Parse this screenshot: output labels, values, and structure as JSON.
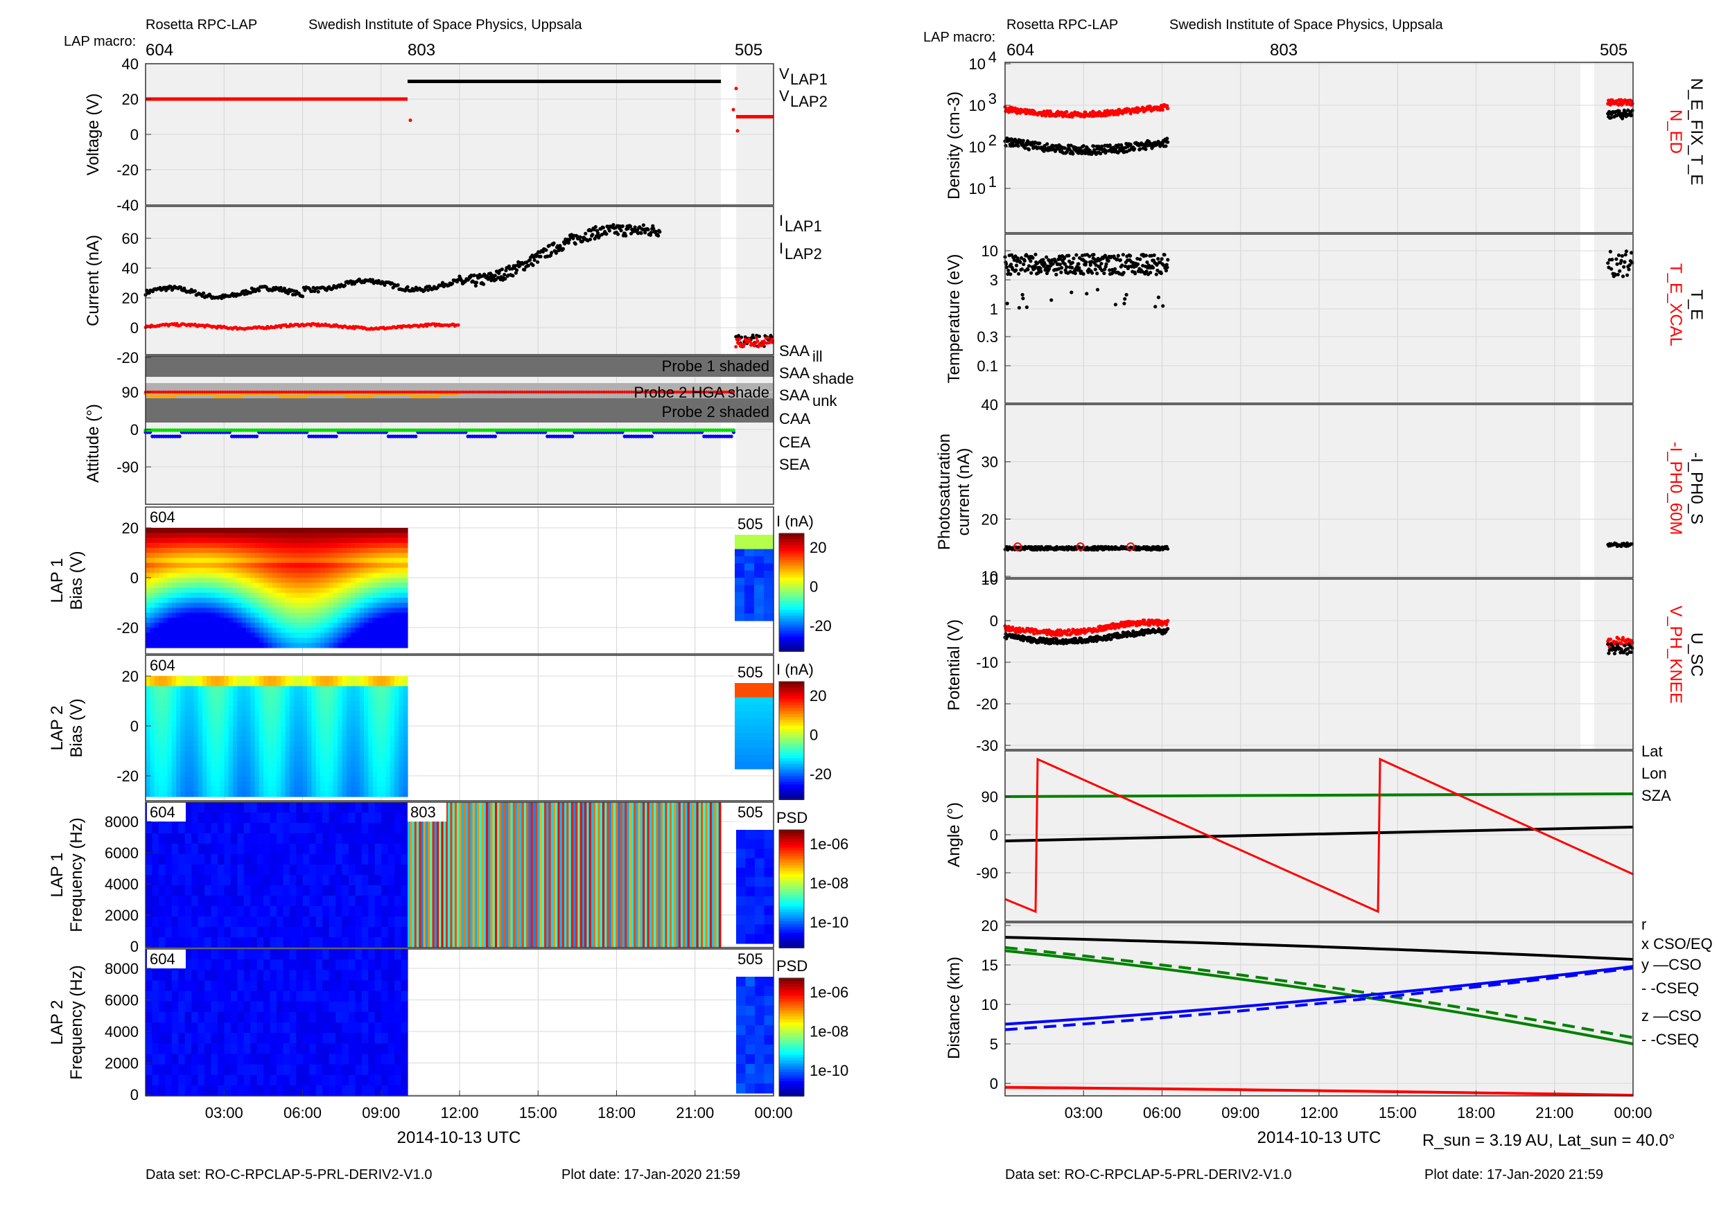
{
  "left": {
    "header": {
      "instrument": "Rosetta RPC-LAP",
      "institute": "Swedish Institute of Space Physics, Uppsala",
      "macro_label": "LAP macro:",
      "macros": [
        "604",
        "803",
        "505"
      ]
    },
    "footer": {
      "dataset": "Data set: RO-C-RPCLAP-5-PRL-DERIV2-V1.0",
      "plot_date": "Plot date: 17-Jan-2020 21:59"
    },
    "xaxis": {
      "title": "2014-10-13 UTC",
      "ticks": [
        "03:00",
        "06:00",
        "09:00",
        "12:00",
        "15:00",
        "18:00",
        "21:00",
        "00:00"
      ]
    }
  },
  "right": {
    "header": {
      "instrument": "Rosetta RPC-LAP",
      "institute": "Swedish Institute of Space Physics, Uppsala",
      "macro_label": "LAP macro:",
      "macros": [
        "604",
        "803",
        "505"
      ]
    },
    "footer": {
      "dataset": "Data set: RO-C-RPCLAP-5-PRL-DERIV2-V1.0",
      "plot_date": "Plot date: 17-Jan-2020 21:59"
    },
    "xaxis": {
      "title": "2014-10-13 UTC",
      "ticks": [
        "03:00",
        "06:00",
        "09:00",
        "12:00",
        "15:00",
        "18:00",
        "21:00",
        "00:00"
      ]
    },
    "sun_info": "R_sun = 3.19 AU, Lat_sun = 40.0°"
  },
  "chart_data": [
    {
      "type": "scatter",
      "ylabel": "Voltage (V)",
      "yticks": [
        "40",
        "20",
        "0",
        "-20",
        "-40"
      ],
      "series": [
        {
          "name": "V_LAP1",
          "color": "#000000",
          "values_by_macro": {
            "604": 20,
            "803": 30,
            "505": 10
          }
        },
        {
          "name": "V_LAP2",
          "color": "#ff0000",
          "values_by_macro": {
            "604": 20,
            "505": 10
          }
        }
      ]
    },
    {
      "type": "scatter",
      "ylabel": "Current (nA)",
      "yticks": [
        "60",
        "40",
        "20",
        "0",
        "-20"
      ],
      "series": [
        {
          "name": "I_LAP1",
          "color": "#000000"
        },
        {
          "name": "I_LAP2",
          "color": "#ff0000"
        }
      ]
    },
    {
      "type": "scatter",
      "ylabel": "Attitude (°)",
      "yticks": [
        "90",
        "0",
        "-90"
      ],
      "bands": [
        "Probe 1 shaded",
        "Probe 2 HGA shade",
        "Probe 2 shaded"
      ],
      "legend": [
        {
          "name": "SAA_ill",
          "color": "#ff0000"
        },
        {
          "name": "SAA_shade",
          "color": "#ffa500"
        },
        {
          "name": "SAA_unk",
          "color": "#ff00ff"
        },
        {
          "name": "CAA",
          "color": "#0000ff"
        },
        {
          "name": "CEA",
          "color": "#00dd00"
        },
        {
          "name": "SEA",
          "color": "#000000"
        }
      ]
    },
    {
      "type": "heatmap",
      "ylabel": "LAP 1 Bias (V)",
      "yticks": [
        "20",
        "0",
        "-20"
      ],
      "colorbar_label": "I (nA)",
      "colorbar_ticks": [
        "20",
        "0",
        "-20"
      ],
      "macros": [
        "604",
        "505"
      ]
    },
    {
      "type": "heatmap",
      "ylabel": "LAP 2 Bias (V)",
      "yticks": [
        "20",
        "0",
        "-20"
      ],
      "colorbar_label": "I (nA)",
      "colorbar_ticks": [
        "20",
        "0",
        "-20"
      ],
      "macros": [
        "604",
        "505"
      ]
    },
    {
      "type": "heatmap",
      "ylabel": "LAP 1 Frequency (Hz)",
      "yticks": [
        "8000",
        "6000",
        "4000",
        "2000",
        "0"
      ],
      "colorbar_label": "PSD",
      "colorbar_ticks": [
        "1e-06",
        "1e-08",
        "1e-10"
      ],
      "macros": [
        "604",
        "803",
        "505"
      ]
    },
    {
      "type": "heatmap",
      "ylabel": "LAP 2 Frequency (Hz)",
      "yticks": [
        "8000",
        "6000",
        "4000",
        "2000",
        "0"
      ],
      "colorbar_label": "PSD",
      "colorbar_ticks": [
        "1e-06",
        "1e-08",
        "1e-10"
      ],
      "macros": [
        "604",
        "505"
      ]
    },
    {
      "type": "scatter",
      "ylabel": "Density (cm-3)",
      "yticks": [
        "10^4",
        "10^3",
        "10^2",
        "10^1"
      ],
      "log": true,
      "series": [
        {
          "name": "N_ED",
          "color": "#ff0000"
        },
        {
          "name": "N_E_FIX_T_E",
          "color": "#000000"
        }
      ]
    },
    {
      "type": "scatter",
      "ylabel": "Temperature (eV)",
      "yticks": [
        "10",
        "3",
        "1",
        "0.3",
        "0.1"
      ],
      "log": true,
      "series": [
        {
          "name": "T_E_XCAL",
          "color": "#ff0000"
        },
        {
          "name": "T_E",
          "color": "#000000"
        }
      ]
    },
    {
      "type": "scatter",
      "ylabel": "Photosaturation current (nA)",
      "yticks": [
        "40",
        "30",
        "20",
        "10"
      ],
      "series": [
        {
          "name": "-I_PH0_60M",
          "color": "#ff0000"
        },
        {
          "name": "-I_PH0_S",
          "color": "#000000"
        }
      ]
    },
    {
      "type": "scatter",
      "ylabel": "Potential (V)",
      "yticks": [
        "10",
        "0",
        "-10",
        "-20",
        "-30"
      ],
      "series": [
        {
          "name": "V_PH_KNEE",
          "color": "#ff0000"
        },
        {
          "name": "U_SC",
          "color": "#000000"
        }
      ]
    },
    {
      "type": "line",
      "ylabel": "Angle (°)",
      "yticks": [
        "90",
        "0",
        "-90"
      ],
      "series": [
        {
          "name": "Lat",
          "color": "#000000"
        },
        {
          "name": "Lon",
          "color": "#ff0000"
        },
        {
          "name": "SZA",
          "color": "#008000"
        }
      ]
    },
    {
      "type": "line",
      "ylabel": "Distance (km)",
      "yticks": [
        "20",
        "15",
        "10",
        "5",
        "0"
      ],
      "series": [
        {
          "name": "r",
          "color": "#000000",
          "values": [
            18.5,
            15.7
          ]
        },
        {
          "name": "x_CSO/EQ",
          "color": "#ff0000",
          "values": [
            -0.5,
            -1.5
          ]
        },
        {
          "name": "y_CSO",
          "color": "#008000",
          "values": [
            16.8,
            5.0
          ]
        },
        {
          "name": "y_CSEQ",
          "color": "#008000",
          "values": [
            17.2,
            5.8
          ]
        },
        {
          "name": "z_CSO",
          "color": "#0000ff",
          "values": [
            7.5,
            14.8
          ]
        },
        {
          "name": "z_CSEQ",
          "color": "#0000ff",
          "values": [
            6.8,
            14.6
          ]
        }
      ],
      "legend": [
        "r",
        "x CSO/EQ",
        "y —CSO",
        "- -CSEQ",
        "z —CSO",
        "- -CSEQ"
      ]
    }
  ]
}
